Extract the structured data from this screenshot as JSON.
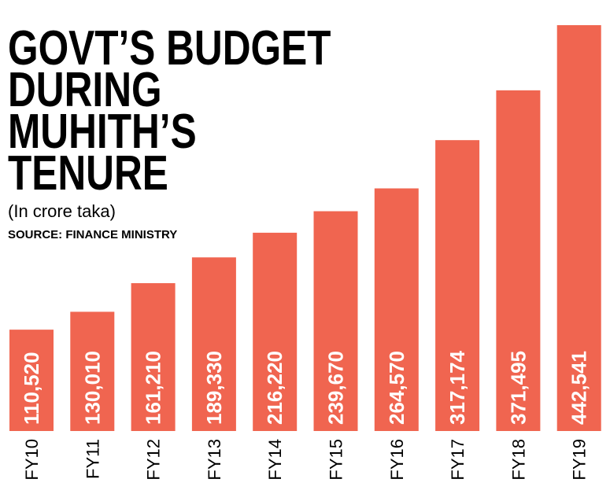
{
  "chart_data": {
    "type": "bar",
    "title": [
      "GOVT’S BUDGET",
      "DURING",
      "MUHITH’S",
      "TENURE"
    ],
    "subtitle": "(In crore taka)",
    "source": "SOURCE: FINANCE MINISTRY",
    "categories": [
      "FY10",
      "FY11",
      "FY12",
      "FY13",
      "FY14",
      "FY15",
      "FY16",
      "FY17",
      "FY18",
      "FY19"
    ],
    "values": [
      110520,
      130010,
      161210,
      189330,
      216220,
      239670,
      264570,
      317174,
      371495,
      442541
    ],
    "value_labels": [
      "110,520",
      "130,010",
      "161,210",
      "189,330",
      "216,220",
      "239,670",
      "264,570",
      "317,174",
      "371,495",
      "442,541"
    ],
    "color": "#f06550"
  }
}
